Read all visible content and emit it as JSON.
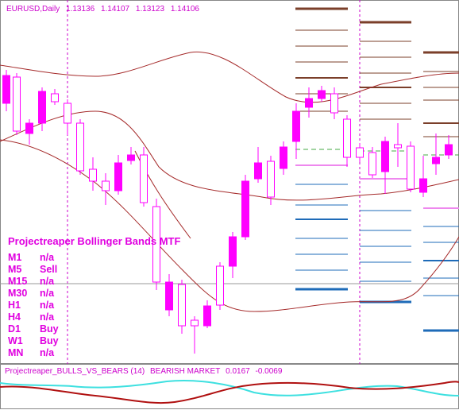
{
  "chart": {
    "symbol_tf": "EURUSD,Daily",
    "ohlc": [
      "1.13136",
      "1.14107",
      "1.13123",
      "1.14106"
    ]
  },
  "indicator_panel": {
    "title": "Projectreaper Bollinger Bands MTF",
    "rows": [
      {
        "tf": "M1",
        "signal": "n/a"
      },
      {
        "tf": "M5",
        "signal": "Sell"
      },
      {
        "tf": "M15",
        "signal": "n/a"
      },
      {
        "tf": "M30",
        "signal": "n/a"
      },
      {
        "tf": "H1",
        "signal": "n/a"
      },
      {
        "tf": "H4",
        "signal": "n/a"
      },
      {
        "tf": "D1",
        "signal": "Buy"
      },
      {
        "tf": "W1",
        "signal": "Buy"
      },
      {
        "tf": "MN",
        "signal": "n/a"
      }
    ]
  },
  "subwindow": {
    "name": "Projectreaper_BULLS_VS_BEARS (14)",
    "status": "BEARISH MARKET",
    "value1": "0.0167",
    "value2": "-0.0069"
  },
  "colors": {
    "candle": "#ff00ff",
    "band": "#a52a2a",
    "label": "#e000e0",
    "level_dark": "#7b3f2a",
    "level_blue": "#1e6bb8",
    "bulls_line": "#3ee0e0",
    "bears_line": "#b01010"
  }
}
